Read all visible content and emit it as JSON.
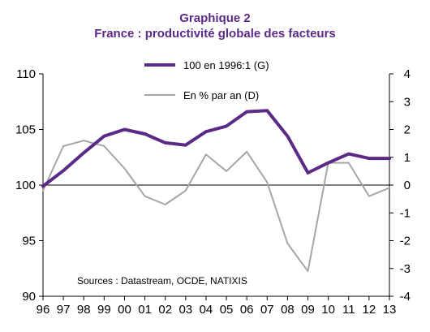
{
  "chart_data": {
    "type": "line",
    "title": "Graphique 2",
    "subtitle": "France : productivité globale des facteurs",
    "categories": [
      "96",
      "97",
      "98",
      "99",
      "00",
      "01",
      "02",
      "03",
      "04",
      "05",
      "06",
      "07",
      "08",
      "09",
      "10",
      "11",
      "12",
      "13"
    ],
    "y_left": {
      "ylim": [
        90,
        110
      ],
      "ticks": [
        "90",
        "95",
        "100",
        "105",
        "110"
      ]
    },
    "y_right": {
      "ylim": [
        -4,
        4
      ],
      "ticks": [
        "-4",
        "-3",
        "-2",
        "-1",
        "0",
        "1",
        "2",
        "3",
        "4"
      ]
    },
    "series": [
      {
        "name": "100 en 1996:1 (G)",
        "axis": "left",
        "color": "#5b2a86",
        "values": [
          99.9,
          101.3,
          102.9,
          104.4,
          105.0,
          104.6,
          103.8,
          103.6,
          104.8,
          105.3,
          106.6,
          106.7,
          104.4,
          101.1,
          102.0,
          102.8,
          102.4,
          102.4
        ]
      },
      {
        "name": "En % par an (D)",
        "axis": "right",
        "color": "#a6a6a6",
        "values": [
          -0.2,
          1.4,
          1.6,
          1.4,
          0.6,
          -0.4,
          -0.7,
          -0.2,
          1.1,
          0.5,
          1.2,
          0.1,
          -2.1,
          -3.1,
          0.8,
          0.8,
          -0.4,
          -0.1
        ]
      }
    ],
    "note": "Sources : Datastream, OCDE, NATIXIS",
    "grid": false,
    "legend": "top-center"
  }
}
